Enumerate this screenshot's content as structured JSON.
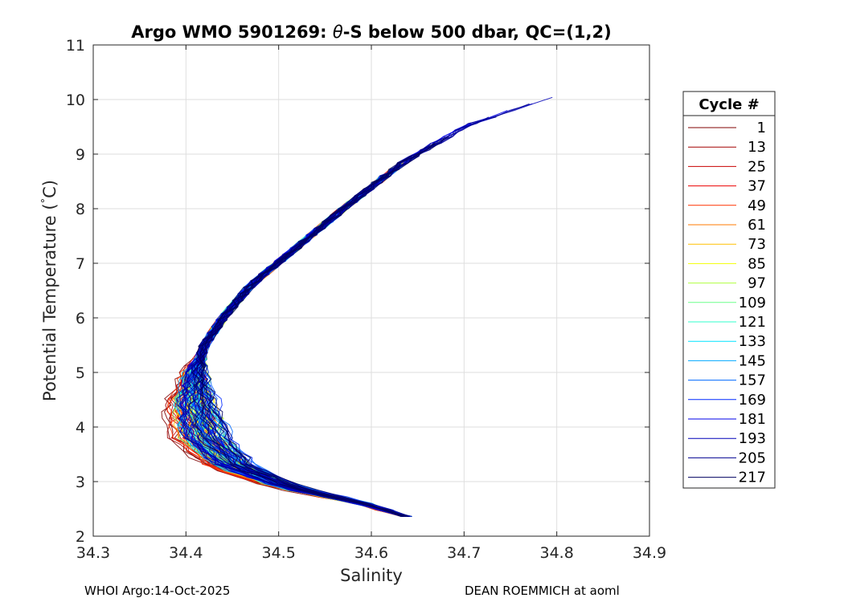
{
  "chart_data": {
    "type": "line",
    "title_prefix": "Argo WMO 5901269: ",
    "title_symbol": "θ",
    "title_suffix": "-S below 500 dbar,  QC=(1,2)",
    "xlabel": "Salinity",
    "ylabel": "Potential Temperature (",
    "ylabel_degree": "°",
    "ylabel_unit": "C)",
    "xlim": [
      34.3,
      34.9
    ],
    "ylim": [
      2,
      11
    ],
    "xticks": [
      "34.3",
      "34.4",
      "34.5",
      "34.6",
      "34.7",
      "34.8",
      "34.9"
    ],
    "yticks": [
      "2",
      "3",
      "4",
      "5",
      "6",
      "7",
      "8",
      "9",
      "10",
      "11"
    ],
    "grid": true,
    "legend_title": "Cycle #",
    "legend_location": "outside-right",
    "colormap": "jet",
    "series": [
      {
        "name": "1",
        "color": "#800000"
      },
      {
        "name": "13",
        "color": "#a30000"
      },
      {
        "name": "25",
        "color": "#c80000"
      },
      {
        "name": "37",
        "color": "#ec0000"
      },
      {
        "name": "49",
        "color": "#ff3200"
      },
      {
        "name": "61",
        "color": "#ff7a00"
      },
      {
        "name": "73",
        "color": "#ffc000"
      },
      {
        "name": "85",
        "color": "#f2ff00"
      },
      {
        "name": "97",
        "color": "#b0ff40"
      },
      {
        "name": "109",
        "color": "#6bff8a"
      },
      {
        "name": "121",
        "color": "#30ffcc"
      },
      {
        "name": "133",
        "color": "#00e4ff"
      },
      {
        "name": "145",
        "color": "#00a8ff"
      },
      {
        "name": "157",
        "color": "#0068ff"
      },
      {
        "name": "169",
        "color": "#0028ff"
      },
      {
        "name": "181",
        "color": "#0000e8"
      },
      {
        "name": "193",
        "color": "#0000b8"
      },
      {
        "name": "205",
        "color": "#000090"
      },
      {
        "name": "217",
        "color": "#000060"
      }
    ],
    "envelope": [
      [
        34.64,
        2.35
      ],
      [
        34.59,
        2.6
      ],
      [
        34.51,
        2.9
      ],
      [
        34.45,
        3.3
      ],
      [
        34.42,
        3.8
      ],
      [
        34.41,
        4.4
      ],
      [
        34.41,
        5.0
      ],
      [
        34.42,
        5.5
      ],
      [
        34.44,
        6.0
      ],
      [
        34.47,
        6.6
      ],
      [
        34.52,
        7.3
      ],
      [
        34.57,
        8.0
      ],
      [
        34.63,
        8.8
      ],
      [
        34.7,
        9.5
      ],
      [
        34.82,
        10.22
      ]
    ]
  },
  "footer": {
    "left": "WHOI Argo:14-Oct-2025",
    "right": "DEAN ROEMMICH at aoml"
  }
}
